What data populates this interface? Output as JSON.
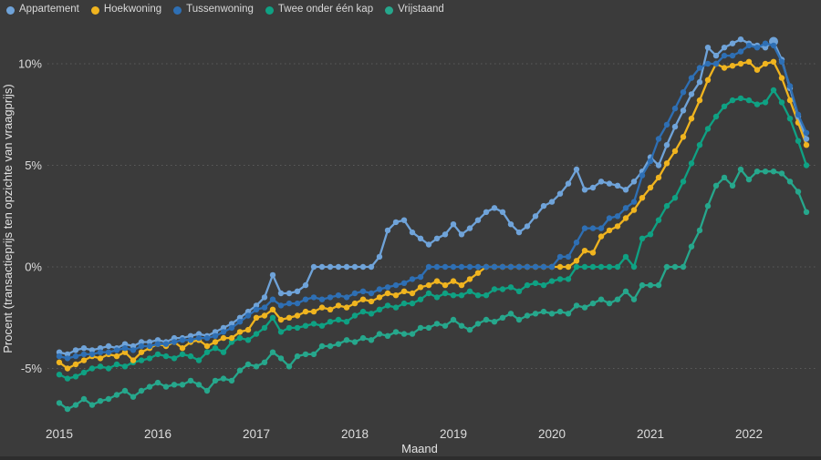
{
  "page": {
    "background": "#3B3B3B",
    "bottom_edge_color": "#2D2D2D"
  },
  "chart_data": {
    "type": "line",
    "title": "",
    "xlabel": "Maand",
    "ylabel": "Procent (transactieprijs ten opzichte van vraagprijs)",
    "x_start_month": "2015-01",
    "x_end_month": "2022-08",
    "points_per_series": 92,
    "grid": "horizontal dotted",
    "legend_position": "top-left",
    "ylim": [
      -7.5,
      12
    ],
    "y_ticks": [
      {
        "value": 10,
        "label": "10%"
      },
      {
        "value": 5,
        "label": "5%"
      },
      {
        "value": 0,
        "label": "0%"
      },
      {
        "value": -5,
        "label": "-5%"
      }
    ],
    "x_year_ticks": [
      {
        "label": "2015",
        "month_index": 0
      },
      {
        "label": "2016",
        "month_index": 12
      },
      {
        "label": "2017",
        "month_index": 24
      },
      {
        "label": "2018",
        "month_index": 36
      },
      {
        "label": "2019",
        "month_index": 48
      },
      {
        "label": "2020",
        "month_index": 60
      },
      {
        "label": "2021",
        "month_index": 72
      },
      {
        "label": "2022",
        "month_index": 84
      }
    ],
    "series": [
      {
        "name": "Appartement",
        "color": "#6FA3D9",
        "values": [
          -4.2,
          -4.3,
          -4.1,
          -4.0,
          -4.1,
          -4.0,
          -3.9,
          -4.0,
          -3.8,
          -3.9,
          -3.7,
          -3.7,
          -3.6,
          -3.7,
          -3.5,
          -3.5,
          -3.4,
          -3.3,
          -3.4,
          -3.2,
          -3.0,
          -2.8,
          -2.5,
          -2.2,
          -1.9,
          -1.5,
          -0.4,
          -1.3,
          -1.3,
          -1.2,
          -0.9,
          0.0,
          0.0,
          0.0,
          0.0,
          0.0,
          0.0,
          0.0,
          0.0,
          0.5,
          1.8,
          2.2,
          2.3,
          1.7,
          1.4,
          1.1,
          1.4,
          1.6,
          2.1,
          1.6,
          1.9,
          2.3,
          2.7,
          2.9,
          2.7,
          2.1,
          1.7,
          2.0,
          2.5,
          3.0,
          3.2,
          3.6,
          4.1,
          4.8,
          3.8,
          3.9,
          4.2,
          4.1,
          4.0,
          3.8,
          4.2,
          4.7,
          5.4,
          5.0,
          6.0,
          6.9,
          7.7,
          8.5,
          9.1,
          10.8,
          10.4,
          10.8,
          11.0,
          11.2,
          11.0,
          10.9,
          10.8,
          11.1,
          10.2,
          8.8,
          7.4,
          6.3
        ]
      },
      {
        "name": "Hoekwoning",
        "color": "#F0B41F",
        "values": [
          -4.7,
          -5.0,
          -4.8,
          -4.6,
          -4.4,
          -4.5,
          -4.3,
          -4.4,
          -4.2,
          -4.6,
          -4.2,
          -4.0,
          -3.8,
          -3.9,
          -3.7,
          -4.0,
          -3.7,
          -3.6,
          -3.9,
          -3.7,
          -3.5,
          -3.5,
          -3.2,
          -3.1,
          -2.5,
          -2.4,
          -2.1,
          -2.6,
          -2.5,
          -2.4,
          -2.2,
          -2.2,
          -2.0,
          -2.1,
          -1.9,
          -2.0,
          -1.8,
          -1.6,
          -1.7,
          -1.5,
          -1.3,
          -1.4,
          -1.2,
          -1.3,
          -1.0,
          -0.9,
          -0.7,
          -0.9,
          -0.7,
          -0.9,
          -0.6,
          -0.3,
          0.0,
          0.0,
          0.0,
          0.0,
          0.0,
          0.0,
          0.0,
          0.0,
          0.0,
          0.0,
          0.0,
          0.3,
          0.8,
          0.7,
          1.5,
          1.8,
          2.0,
          2.4,
          2.8,
          3.4,
          3.9,
          4.4,
          5.1,
          5.7,
          6.4,
          7.3,
          8.2,
          9.2,
          10.0,
          9.8,
          9.9,
          10.0,
          10.1,
          9.7,
          10.0,
          10.1,
          9.3,
          8.2,
          7.1,
          6.0
        ]
      },
      {
        "name": "Tussenwoning",
        "color": "#2E6FB4",
        "values": [
          -4.4,
          -4.5,
          -4.4,
          -4.3,
          -4.3,
          -4.2,
          -4.2,
          -4.1,
          -4.0,
          -4.1,
          -3.9,
          -3.9,
          -3.8,
          -3.8,
          -3.7,
          -3.6,
          -3.6,
          -3.5,
          -3.5,
          -3.4,
          -3.2,
          -3.0,
          -2.7,
          -2.4,
          -2.1,
          -2.0,
          -1.6,
          -1.9,
          -1.8,
          -1.8,
          -1.6,
          -1.5,
          -1.6,
          -1.5,
          -1.4,
          -1.5,
          -1.3,
          -1.2,
          -1.3,
          -1.1,
          -1.0,
          -0.9,
          -0.8,
          -0.6,
          -0.5,
          0.0,
          0.0,
          0.0,
          0.0,
          0.0,
          0.0,
          0.0,
          0.0,
          0.0,
          0.0,
          0.0,
          0.0,
          0.0,
          0.0,
          0.0,
          0.0,
          0.5,
          0.5,
          1.2,
          1.9,
          1.9,
          1.9,
          2.4,
          2.5,
          2.9,
          3.2,
          4.5,
          5.2,
          6.3,
          7.0,
          7.8,
          8.6,
          9.3,
          9.8,
          10.0,
          10.0,
          10.4,
          10.4,
          10.6,
          10.9,
          10.8,
          11.0,
          10.9,
          10.1,
          8.9,
          7.5,
          6.6
        ]
      },
      {
        "name": "Twee onder één kap",
        "color": "#0FA183",
        "values": [
          -5.3,
          -5.5,
          -5.4,
          -5.2,
          -5.0,
          -4.9,
          -5.0,
          -4.8,
          -4.9,
          -4.7,
          -4.6,
          -4.5,
          -4.3,
          -4.4,
          -4.5,
          -4.3,
          -4.4,
          -4.6,
          -4.2,
          -4.0,
          -4.2,
          -3.7,
          -3.5,
          -3.6,
          -3.3,
          -3.0,
          -2.5,
          -3.2,
          -3.0,
          -3.0,
          -2.9,
          -2.8,
          -2.9,
          -2.7,
          -2.6,
          -2.7,
          -2.4,
          -2.2,
          -2.3,
          -2.1,
          -1.9,
          -2.0,
          -1.8,
          -1.8,
          -1.6,
          -1.3,
          -1.5,
          -1.3,
          -1.4,
          -1.4,
          -1.2,
          -1.4,
          -1.4,
          -1.1,
          -1.1,
          -1.0,
          -1.2,
          -0.9,
          -0.8,
          -0.9,
          -0.7,
          -0.6,
          -0.6,
          0.0,
          0.0,
          0.0,
          0.0,
          0.0,
          0.0,
          0.5,
          0.0,
          1.4,
          1.6,
          2.3,
          3.0,
          3.4,
          4.2,
          5.1,
          6.0,
          6.8,
          7.4,
          7.9,
          8.2,
          8.3,
          8.2,
          8.0,
          8.1,
          8.7,
          8.1,
          7.3,
          6.2,
          5.0
        ]
      },
      {
        "name": "Vrijstaand",
        "color": "#26A78C",
        "values": [
          -6.7,
          -7.0,
          -6.8,
          -6.5,
          -6.8,
          -6.6,
          -6.5,
          -6.3,
          -6.1,
          -6.4,
          -6.1,
          -5.9,
          -5.7,
          -5.9,
          -5.8,
          -5.8,
          -5.6,
          -5.8,
          -6.1,
          -5.6,
          -5.5,
          -5.6,
          -5.1,
          -4.8,
          -4.9,
          -4.7,
          -4.2,
          -4.5,
          -4.9,
          -4.4,
          -4.3,
          -4.3,
          -3.9,
          -3.9,
          -3.8,
          -3.6,
          -3.7,
          -3.5,
          -3.6,
          -3.3,
          -3.4,
          -3.2,
          -3.3,
          -3.3,
          -3.0,
          -3.0,
          -2.8,
          -2.9,
          -2.6,
          -2.9,
          -3.1,
          -2.8,
          -2.6,
          -2.7,
          -2.5,
          -2.3,
          -2.6,
          -2.4,
          -2.3,
          -2.2,
          -2.3,
          -2.2,
          -2.3,
          -1.9,
          -2.0,
          -1.8,
          -1.6,
          -1.8,
          -1.6,
          -1.2,
          -1.6,
          -0.9,
          -0.9,
          -0.9,
          0.0,
          0.0,
          0.0,
          1.0,
          1.8,
          3.0,
          4.0,
          4.4,
          4.0,
          4.8,
          4.3,
          4.7,
          4.7,
          4.7,
          4.6,
          4.2,
          3.7,
          2.7
        ]
      }
    ],
    "highlight_point": {
      "series_index": 0,
      "month_index": 87
    }
  }
}
